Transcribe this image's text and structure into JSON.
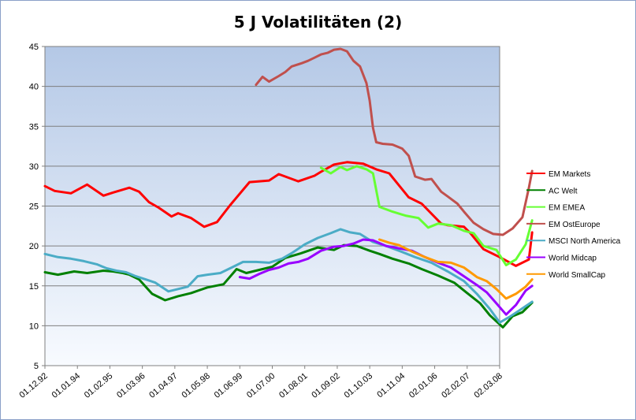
{
  "chart_data": {
    "type": "line",
    "title": "5 J Volatilitäten (2)",
    "xlabel": "",
    "ylabel": "",
    "ylim": [
      5,
      45
    ],
    "yticks": [
      "5",
      "10",
      "15",
      "20",
      "25",
      "30",
      "35",
      "40",
      "45"
    ],
    "xticks": [
      "01.12.92",
      "01.01.94",
      "01.02.95",
      "01.03.96",
      "01.04.97",
      "01.05.98",
      "01.06.99",
      "01.07.00",
      "01.08.01",
      "01.09.02",
      "01.10.03",
      "01.11.04",
      "02.01.06",
      "02.02.07",
      "02.03.08"
    ],
    "grid": "horizontal",
    "legend_position": "right",
    "series": [
      {
        "name": "EM Markets",
        "color": "#ff0000",
        "x": [
          0,
          0.3,
          0.8,
          1.3,
          1.8,
          2.1,
          2.6,
          2.9,
          3.2,
          3.5,
          3.9,
          4.1,
          4.5,
          4.9,
          5.3,
          5.7,
          6.3,
          6.9,
          7.2,
          7.8,
          8.3,
          8.5,
          8.9,
          9.3,
          9.8,
          10.2,
          10.6,
          11.2,
          11.6,
          12.2,
          12.4,
          12.9,
          13.1,
          13.5,
          14,
          14.5,
          14.9,
          15
        ],
        "values": [
          27.5,
          26.9,
          26.6,
          27.7,
          26.3,
          26.7,
          27.3,
          26.8,
          25.5,
          24.8,
          23.7,
          24.1,
          23.5,
          22.4,
          23,
          25.1,
          28,
          28.2,
          29,
          28.1,
          28.8,
          29.3,
          30.2,
          30.5,
          30.3,
          29.6,
          29.1,
          26.1,
          25.3,
          22.8,
          22.6,
          22.4,
          21.6,
          19.6,
          18.6,
          17.5,
          18.3,
          21.7
        ]
      },
      {
        "name": "AC Welt",
        "color": "#008000",
        "x": [
          0,
          0.4,
          0.9,
          1.3,
          1.8,
          2.1,
          2.4,
          2.6,
          2.9,
          3.3,
          3.7,
          4.1,
          4.5,
          5,
          5.5,
          5.9,
          6.2,
          6.6,
          7,
          7.4,
          7.9,
          8.4,
          8.9,
          9.2,
          9.6,
          10,
          10.3,
          10.7,
          11.2,
          11.6,
          12.1,
          12.6,
          13,
          13.4,
          13.7,
          14.1,
          14.4,
          14.7,
          15
        ],
        "values": [
          16.7,
          16.4,
          16.8,
          16.6,
          16.9,
          16.8,
          16.6,
          16.4,
          15.8,
          14,
          13.2,
          13.7,
          14.1,
          14.8,
          15.2,
          17.1,
          16.6,
          17,
          17.4,
          18.5,
          19.1,
          19.8,
          19.5,
          20.1,
          20,
          19.4,
          19,
          18.4,
          17.8,
          17.1,
          16.3,
          15.4,
          14.1,
          12.8,
          11.3,
          9.8,
          11.2,
          11.7,
          12.9
        ]
      },
      {
        "name": "EM EMEA",
        "color": "#66ff33",
        "x": [
          8.5,
          8.8,
          9.1,
          9.3,
          9.6,
          9.9,
          10.1,
          10.3,
          10.7,
          11.1,
          11.5,
          11.8,
          12.1,
          12.5,
          12.9,
          13.2,
          13.5,
          13.9,
          14.2,
          14.5,
          14.8,
          15
        ],
        "values": [
          29.8,
          29.1,
          29.9,
          29.5,
          30,
          29.6,
          29.1,
          24.9,
          24.3,
          23.8,
          23.5,
          22.3,
          22.8,
          22.6,
          21.9,
          21.6,
          20,
          19.5,
          17.6,
          18.3,
          20.2,
          23.2
        ]
      },
      {
        "name": "EM OstEurope",
        "color": "#c0504d",
        "x": [
          6.5,
          6.7,
          6.9,
          7.2,
          7.4,
          7.6,
          7.9,
          8.1,
          8.3,
          8.5,
          8.7,
          8.9,
          9.1,
          9.3,
          9.5,
          9.7,
          9.9,
          10,
          10.1,
          10.2,
          10.4,
          10.7,
          11,
          11.2,
          11.4,
          11.7,
          11.9,
          12.2,
          12.4,
          12.7,
          12.9,
          13.2,
          13.5,
          13.8,
          14.1,
          14.4,
          14.7,
          14.9,
          15
        ],
        "values": [
          40.2,
          41.2,
          40.6,
          41.3,
          41.8,
          42.5,
          42.9,
          43.2,
          43.6,
          44,
          44.2,
          44.6,
          44.7,
          44.4,
          43.2,
          42.5,
          40.4,
          38.2,
          34.8,
          33,
          32.8,
          32.7,
          32.2,
          31.3,
          28.7,
          28.3,
          28.4,
          26.8,
          26.2,
          25.3,
          24.3,
          22.9,
          22.1,
          21.5,
          21.4,
          22.2,
          23.6,
          27.3,
          29.4
        ]
      },
      {
        "name": "MSCI North America",
        "color": "#4bacc6",
        "x": [
          0,
          0.4,
          0.8,
          1.2,
          1.6,
          1.9,
          2.2,
          2.5,
          2.8,
          3.1,
          3.4,
          3.8,
          4.1,
          4.4,
          4.7,
          5,
          5.4,
          5.8,
          6.1,
          6.5,
          6.9,
          7.3,
          7.6,
          8,
          8.4,
          8.8,
          9.1,
          9.4,
          9.7,
          10.1,
          10.5,
          10.9,
          11.4,
          11.9,
          12.4,
          12.9,
          13.3,
          13.7,
          14,
          14.3,
          14.6,
          15
        ],
        "values": [
          19,
          18.6,
          18.4,
          18.1,
          17.7,
          17.2,
          16.9,
          16.7,
          16.2,
          15.8,
          15.4,
          14.3,
          14.6,
          14.9,
          16.2,
          16.4,
          16.6,
          17.4,
          18,
          18,
          17.9,
          18.4,
          19.1,
          20.2,
          21,
          21.6,
          22.1,
          21.7,
          21.5,
          20.5,
          20,
          19.4,
          18.6,
          17.9,
          16.8,
          15.6,
          14,
          12.1,
          10.4,
          11.1,
          11.9,
          13
        ]
      },
      {
        "name": "World Midcap",
        "color": "#9900ff",
        "x": [
          6,
          6.3,
          6.6,
          6.9,
          7.2,
          7.5,
          7.8,
          8.1,
          8.5,
          8.9,
          9.2,
          9.5,
          9.8,
          10.1,
          10.5,
          10.9,
          11.3,
          11.7,
          12.1,
          12.5,
          12.9,
          13.3,
          13.6,
          13.9,
          14.2,
          14.5,
          14.8,
          15
        ],
        "values": [
          16.1,
          15.9,
          16.5,
          17,
          17.3,
          17.8,
          18,
          18.4,
          19.4,
          19.9,
          20,
          20.3,
          20.8,
          20.7,
          20,
          19.7,
          19.4,
          18.6,
          17.9,
          17.3,
          16.2,
          15.1,
          14.2,
          12.8,
          11.4,
          12.6,
          14.4,
          15
        ]
      },
      {
        "name": "World SmallCap",
        "color": "#ff9900",
        "x": [
          10.3,
          10.6,
          10.9,
          11.3,
          11.7,
          12.1,
          12.5,
          12.9,
          13.3,
          13.6,
          13.9,
          14.2,
          14.5,
          14.8,
          15
        ],
        "values": [
          20.8,
          20.4,
          20.1,
          19.3,
          18.6,
          18,
          17.9,
          17.3,
          16.1,
          15.6,
          14.6,
          13.4,
          14,
          14.9,
          15.8
        ]
      }
    ]
  }
}
